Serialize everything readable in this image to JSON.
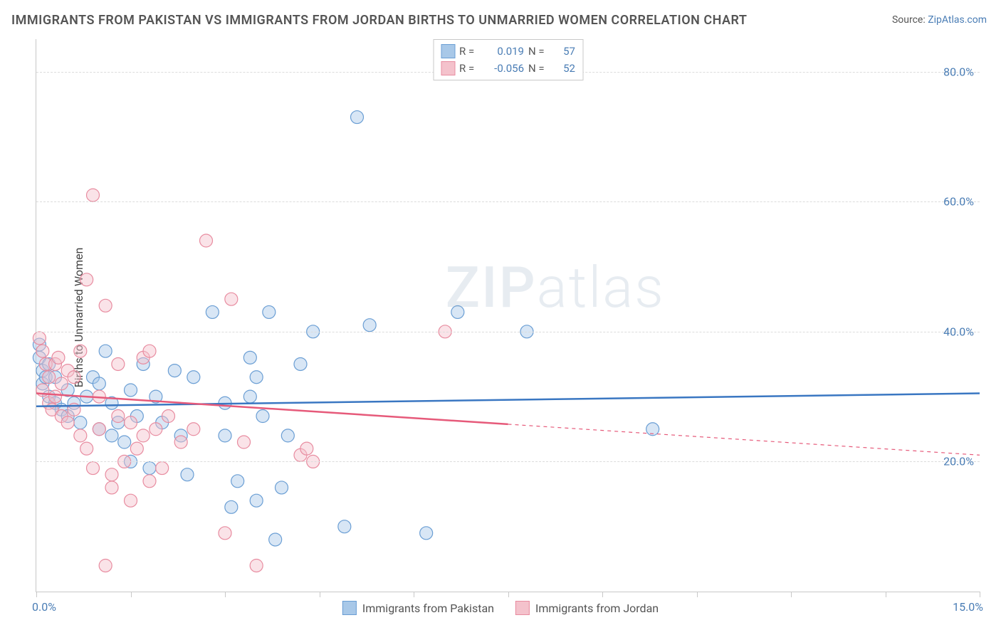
{
  "title": "IMMIGRANTS FROM PAKISTAN VS IMMIGRANTS FROM JORDAN BIRTHS TO UNMARRIED WOMEN CORRELATION CHART",
  "source_label": "Source:",
  "source_link": "ZipAtlas.com",
  "ylabel": "Births to Unmarried Women",
  "watermark_a": "ZIP",
  "watermark_b": "atlas",
  "chart": {
    "type": "scatter",
    "xlim": [
      0,
      15
    ],
    "ylim": [
      0,
      85
    ],
    "x_ticks": [
      0,
      1.5,
      3,
      4.5,
      6,
      7.5,
      9,
      10.5,
      12,
      13.5,
      15
    ],
    "x_tick_labels": {
      "first": "0.0%",
      "last": "15.0%"
    },
    "y_ticks": [
      20,
      40,
      60,
      80
    ],
    "y_tick_labels": [
      "20.0%",
      "40.0%",
      "60.0%",
      "80.0%"
    ],
    "grid_color": "#dcdcdc",
    "axis_color": "#c8c8c8",
    "background_color": "#ffffff",
    "tick_label_color": "#4a7db5",
    "marker_radius": 9,
    "marker_opacity": 0.45,
    "trend_line_width": 2.5,
    "series": [
      {
        "name": "Immigrants from Pakistan",
        "fill_color": "#a8c8e8",
        "stroke_color": "#6a9ed4",
        "line_color": "#3a77c2",
        "R": "0.019",
        "N": "57",
        "trend": {
          "y_at_xmin": 28.5,
          "y_at_xmax": 30.5,
          "solid_until_x": 15
        },
        "points": [
          [
            0.05,
            38
          ],
          [
            0.05,
            36
          ],
          [
            0.1,
            34
          ],
          [
            0.1,
            32
          ],
          [
            0.15,
            33
          ],
          [
            0.2,
            30
          ],
          [
            0.2,
            35
          ],
          [
            0.3,
            29
          ],
          [
            0.3,
            33
          ],
          [
            0.4,
            28
          ],
          [
            0.5,
            31
          ],
          [
            0.5,
            27
          ],
          [
            0.6,
            29
          ],
          [
            0.7,
            26
          ],
          [
            0.8,
            30
          ],
          [
            0.9,
            33
          ],
          [
            1.0,
            32
          ],
          [
            1.0,
            25
          ],
          [
            1.1,
            37
          ],
          [
            1.2,
            24
          ],
          [
            1.2,
            29
          ],
          [
            1.3,
            26
          ],
          [
            1.4,
            23
          ],
          [
            1.5,
            20
          ],
          [
            1.5,
            31
          ],
          [
            1.6,
            27
          ],
          [
            1.7,
            35
          ],
          [
            1.8,
            19
          ],
          [
            1.9,
            30
          ],
          [
            2.0,
            26
          ],
          [
            2.2,
            34
          ],
          [
            2.3,
            24
          ],
          [
            2.4,
            18
          ],
          [
            2.5,
            33
          ],
          [
            2.8,
            43
          ],
          [
            3.0,
            29
          ],
          [
            3.0,
            24
          ],
          [
            3.1,
            13
          ],
          [
            3.2,
            17
          ],
          [
            3.4,
            36
          ],
          [
            3.4,
            30
          ],
          [
            3.5,
            33
          ],
          [
            3.5,
            14
          ],
          [
            3.6,
            27
          ],
          [
            3.7,
            43
          ],
          [
            3.8,
            8
          ],
          [
            3.9,
            16
          ],
          [
            4.0,
            24
          ],
          [
            4.2,
            35
          ],
          [
            4.4,
            40
          ],
          [
            4.9,
            10
          ],
          [
            5.1,
            73
          ],
          [
            5.3,
            41
          ],
          [
            6.2,
            9
          ],
          [
            6.7,
            43
          ],
          [
            7.8,
            40
          ],
          [
            9.8,
            25
          ]
        ]
      },
      {
        "name": "Immigrants from Jordan",
        "fill_color": "#f4c2cc",
        "stroke_color": "#e88ca0",
        "line_color": "#e65a7a",
        "R": "-0.056",
        "N": "52",
        "trend": {
          "y_at_xmin": 30.5,
          "y_at_xmax": 21,
          "solid_until_x": 7.5
        },
        "points": [
          [
            0.05,
            39
          ],
          [
            0.1,
            37
          ],
          [
            0.1,
            31
          ],
          [
            0.15,
            35
          ],
          [
            0.2,
            29
          ],
          [
            0.2,
            33
          ],
          [
            0.25,
            28
          ],
          [
            0.3,
            35
          ],
          [
            0.3,
            30
          ],
          [
            0.35,
            36
          ],
          [
            0.4,
            27
          ],
          [
            0.4,
            32
          ],
          [
            0.5,
            34
          ],
          [
            0.5,
            26
          ],
          [
            0.6,
            28
          ],
          [
            0.6,
            33
          ],
          [
            0.7,
            24
          ],
          [
            0.7,
            37
          ],
          [
            0.8,
            48
          ],
          [
            0.8,
            22
          ],
          [
            0.9,
            61
          ],
          [
            0.9,
            19
          ],
          [
            1.0,
            30
          ],
          [
            1.0,
            25
          ],
          [
            1.1,
            4
          ],
          [
            1.1,
            44
          ],
          [
            1.2,
            18
          ],
          [
            1.2,
            16
          ],
          [
            1.3,
            27
          ],
          [
            1.3,
            35
          ],
          [
            1.4,
            20
          ],
          [
            1.5,
            14
          ],
          [
            1.5,
            26
          ],
          [
            1.6,
            22
          ],
          [
            1.7,
            36
          ],
          [
            1.7,
            24
          ],
          [
            1.8,
            17
          ],
          [
            1.8,
            37
          ],
          [
            1.9,
            25
          ],
          [
            2.0,
            19
          ],
          [
            2.1,
            27
          ],
          [
            2.3,
            23
          ],
          [
            2.5,
            25
          ],
          [
            2.7,
            54
          ],
          [
            3.0,
            9
          ],
          [
            3.1,
            45
          ],
          [
            3.3,
            23
          ],
          [
            3.5,
            4
          ],
          [
            4.2,
            21
          ],
          [
            4.3,
            22
          ],
          [
            4.4,
            20
          ],
          [
            6.5,
            40
          ]
        ]
      }
    ]
  }
}
